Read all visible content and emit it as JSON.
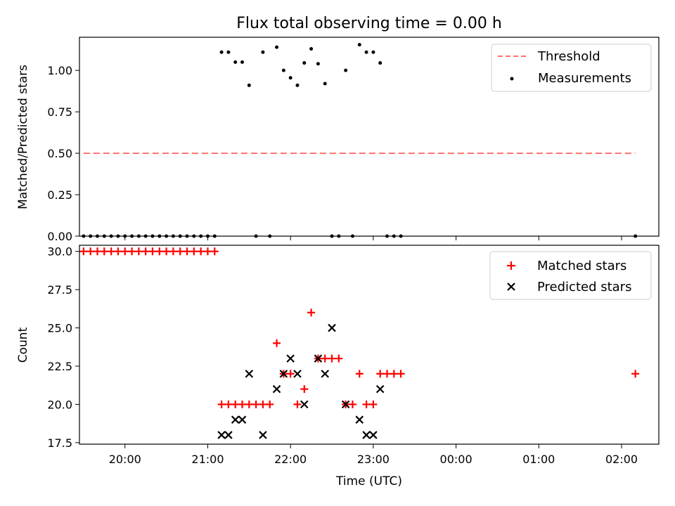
{
  "chart_data": [
    {
      "type": "scatter",
      "title": "Flux total observing time = 0.00 h",
      "xlabel": "",
      "ylabel": "Matched/Predicted stars",
      "xlim": [
        "19:27",
        "02:27"
      ],
      "ylim": [
        0,
        1.2
      ],
      "yticks": [
        0.0,
        0.25,
        0.5,
        0.75,
        1.0
      ],
      "ytick_labels": [
        "0.00",
        "0.25",
        "0.50",
        "0.75",
        "1.00"
      ],
      "legend": {
        "placement": "top-right",
        "entries": [
          "Threshold",
          "Measurements"
        ]
      },
      "grid": false,
      "series": [
        {
          "name": "Threshold",
          "kind": "dashed-line",
          "color": "#ff7070",
          "points": [
            [
              "19:30",
              0.5
            ],
            [
              "02:10",
              0.5
            ]
          ]
        },
        {
          "name": "Measurements",
          "kind": "dots",
          "color": "#000000",
          "points": [
            [
              "19:30",
              0
            ],
            [
              "19:35",
              0
            ],
            [
              "19:40",
              0
            ],
            [
              "19:45",
              0
            ],
            [
              "19:50",
              0
            ],
            [
              "19:55",
              0
            ],
            [
              "20:00",
              0
            ],
            [
              "20:05",
              0
            ],
            [
              "20:10",
              0
            ],
            [
              "20:15",
              0
            ],
            [
              "20:20",
              0
            ],
            [
              "20:25",
              0
            ],
            [
              "20:30",
              0
            ],
            [
              "20:35",
              0
            ],
            [
              "20:40",
              0
            ],
            [
              "20:45",
              0
            ],
            [
              "20:50",
              0
            ],
            [
              "20:55",
              0
            ],
            [
              "21:00",
              0
            ],
            [
              "21:05",
              0
            ],
            [
              "21:10",
              1.11
            ],
            [
              "21:15",
              1.11
            ],
            [
              "21:20",
              1.05
            ],
            [
              "21:25",
              1.05
            ],
            [
              "21:30",
              0.91
            ],
            [
              "21:35",
              0
            ],
            [
              "21:40",
              1.11
            ],
            [
              "21:45",
              0
            ],
            [
              "21:50",
              1.14
            ],
            [
              "21:55",
              1.0
            ],
            [
              "22:00",
              0.955
            ],
            [
              "22:05",
              0.91
            ],
            [
              "22:10",
              1.045
            ],
            [
              "22:15",
              1.13
            ],
            [
              "22:20",
              1.04
            ],
            [
              "22:25",
              0.92
            ],
            [
              "22:30",
              0
            ],
            [
              "22:35",
              0
            ],
            [
              "22:40",
              1.0
            ],
            [
              "22:45",
              0
            ],
            [
              "22:50",
              1.155
            ],
            [
              "22:55",
              1.11
            ],
            [
              "23:00",
              1.11
            ],
            [
              "23:05",
              1.045
            ],
            [
              "23:10",
              0
            ],
            [
              "23:15",
              0
            ],
            [
              "23:20",
              0
            ],
            [
              "02:10",
              0
            ]
          ]
        }
      ]
    },
    {
      "type": "scatter",
      "title": "",
      "xlabel": "Time (UTC)",
      "ylabel": "Count",
      "xlim": [
        "19:27",
        "02:27"
      ],
      "ylim": [
        17.4,
        30.4
      ],
      "xticks": [
        "20:00",
        "21:00",
        "22:00",
        "23:00",
        "00:00",
        "01:00",
        "02:00"
      ],
      "yticks": [
        17.5,
        20.0,
        22.5,
        25.0,
        27.5,
        30.0
      ],
      "ytick_labels": [
        "17.5",
        "20.0",
        "22.5",
        "25.0",
        "27.5",
        "30.0"
      ],
      "legend": {
        "placement": "top-right",
        "entries": [
          "Matched stars",
          "Predicted stars"
        ]
      },
      "grid": false,
      "series": [
        {
          "name": "Matched stars",
          "kind": "plus",
          "color": "#ff0000",
          "points": [
            [
              "19:30",
              30
            ],
            [
              "19:35",
              30
            ],
            [
              "19:40",
              30
            ],
            [
              "19:45",
              30
            ],
            [
              "19:50",
              30
            ],
            [
              "19:55",
              30
            ],
            [
              "20:00",
              30
            ],
            [
              "20:05",
              30
            ],
            [
              "20:10",
              30
            ],
            [
              "20:15",
              30
            ],
            [
              "20:20",
              30
            ],
            [
              "20:25",
              30
            ],
            [
              "20:30",
              30
            ],
            [
              "20:35",
              30
            ],
            [
              "20:40",
              30
            ],
            [
              "20:45",
              30
            ],
            [
              "20:50",
              30
            ],
            [
              "20:55",
              30
            ],
            [
              "21:00",
              30
            ],
            [
              "21:05",
              30
            ],
            [
              "21:10",
              20
            ],
            [
              "21:15",
              20
            ],
            [
              "21:20",
              20
            ],
            [
              "21:25",
              20
            ],
            [
              "21:30",
              20
            ],
            [
              "21:35",
              20
            ],
            [
              "21:40",
              20
            ],
            [
              "21:45",
              20
            ],
            [
              "21:50",
              24
            ],
            [
              "21:55",
              22
            ],
            [
              "22:00",
              22
            ],
            [
              "22:05",
              20
            ],
            [
              "22:10",
              21
            ],
            [
              "22:15",
              26
            ],
            [
              "22:20",
              23
            ],
            [
              "22:25",
              23
            ],
            [
              "22:30",
              23
            ],
            [
              "22:35",
              23
            ],
            [
              "22:40",
              20
            ],
            [
              "22:45",
              20
            ],
            [
              "22:50",
              22
            ],
            [
              "22:55",
              20
            ],
            [
              "23:00",
              20
            ],
            [
              "23:05",
              22
            ],
            [
              "23:10",
              22
            ],
            [
              "23:15",
              22
            ],
            [
              "23:20",
              22
            ],
            [
              "02:10",
              22
            ]
          ]
        },
        {
          "name": "Predicted stars",
          "kind": "cross",
          "color": "#000000",
          "points": [
            [
              "21:10",
              18
            ],
            [
              "21:15",
              18
            ],
            [
              "21:20",
              19
            ],
            [
              "21:25",
              19
            ],
            [
              "21:30",
              22
            ],
            [
              "21:40",
              18
            ],
            [
              "21:50",
              21
            ],
            [
              "21:55",
              22
            ],
            [
              "22:00",
              23
            ],
            [
              "22:05",
              22
            ],
            [
              "22:10",
              20
            ],
            [
              "22:20",
              23
            ],
            [
              "22:25",
              22
            ],
            [
              "22:30",
              25
            ],
            [
              "22:40",
              20
            ],
            [
              "22:50",
              19
            ],
            [
              "22:55",
              18
            ],
            [
              "23:00",
              18
            ],
            [
              "23:05",
              21
            ]
          ]
        }
      ]
    }
  ]
}
